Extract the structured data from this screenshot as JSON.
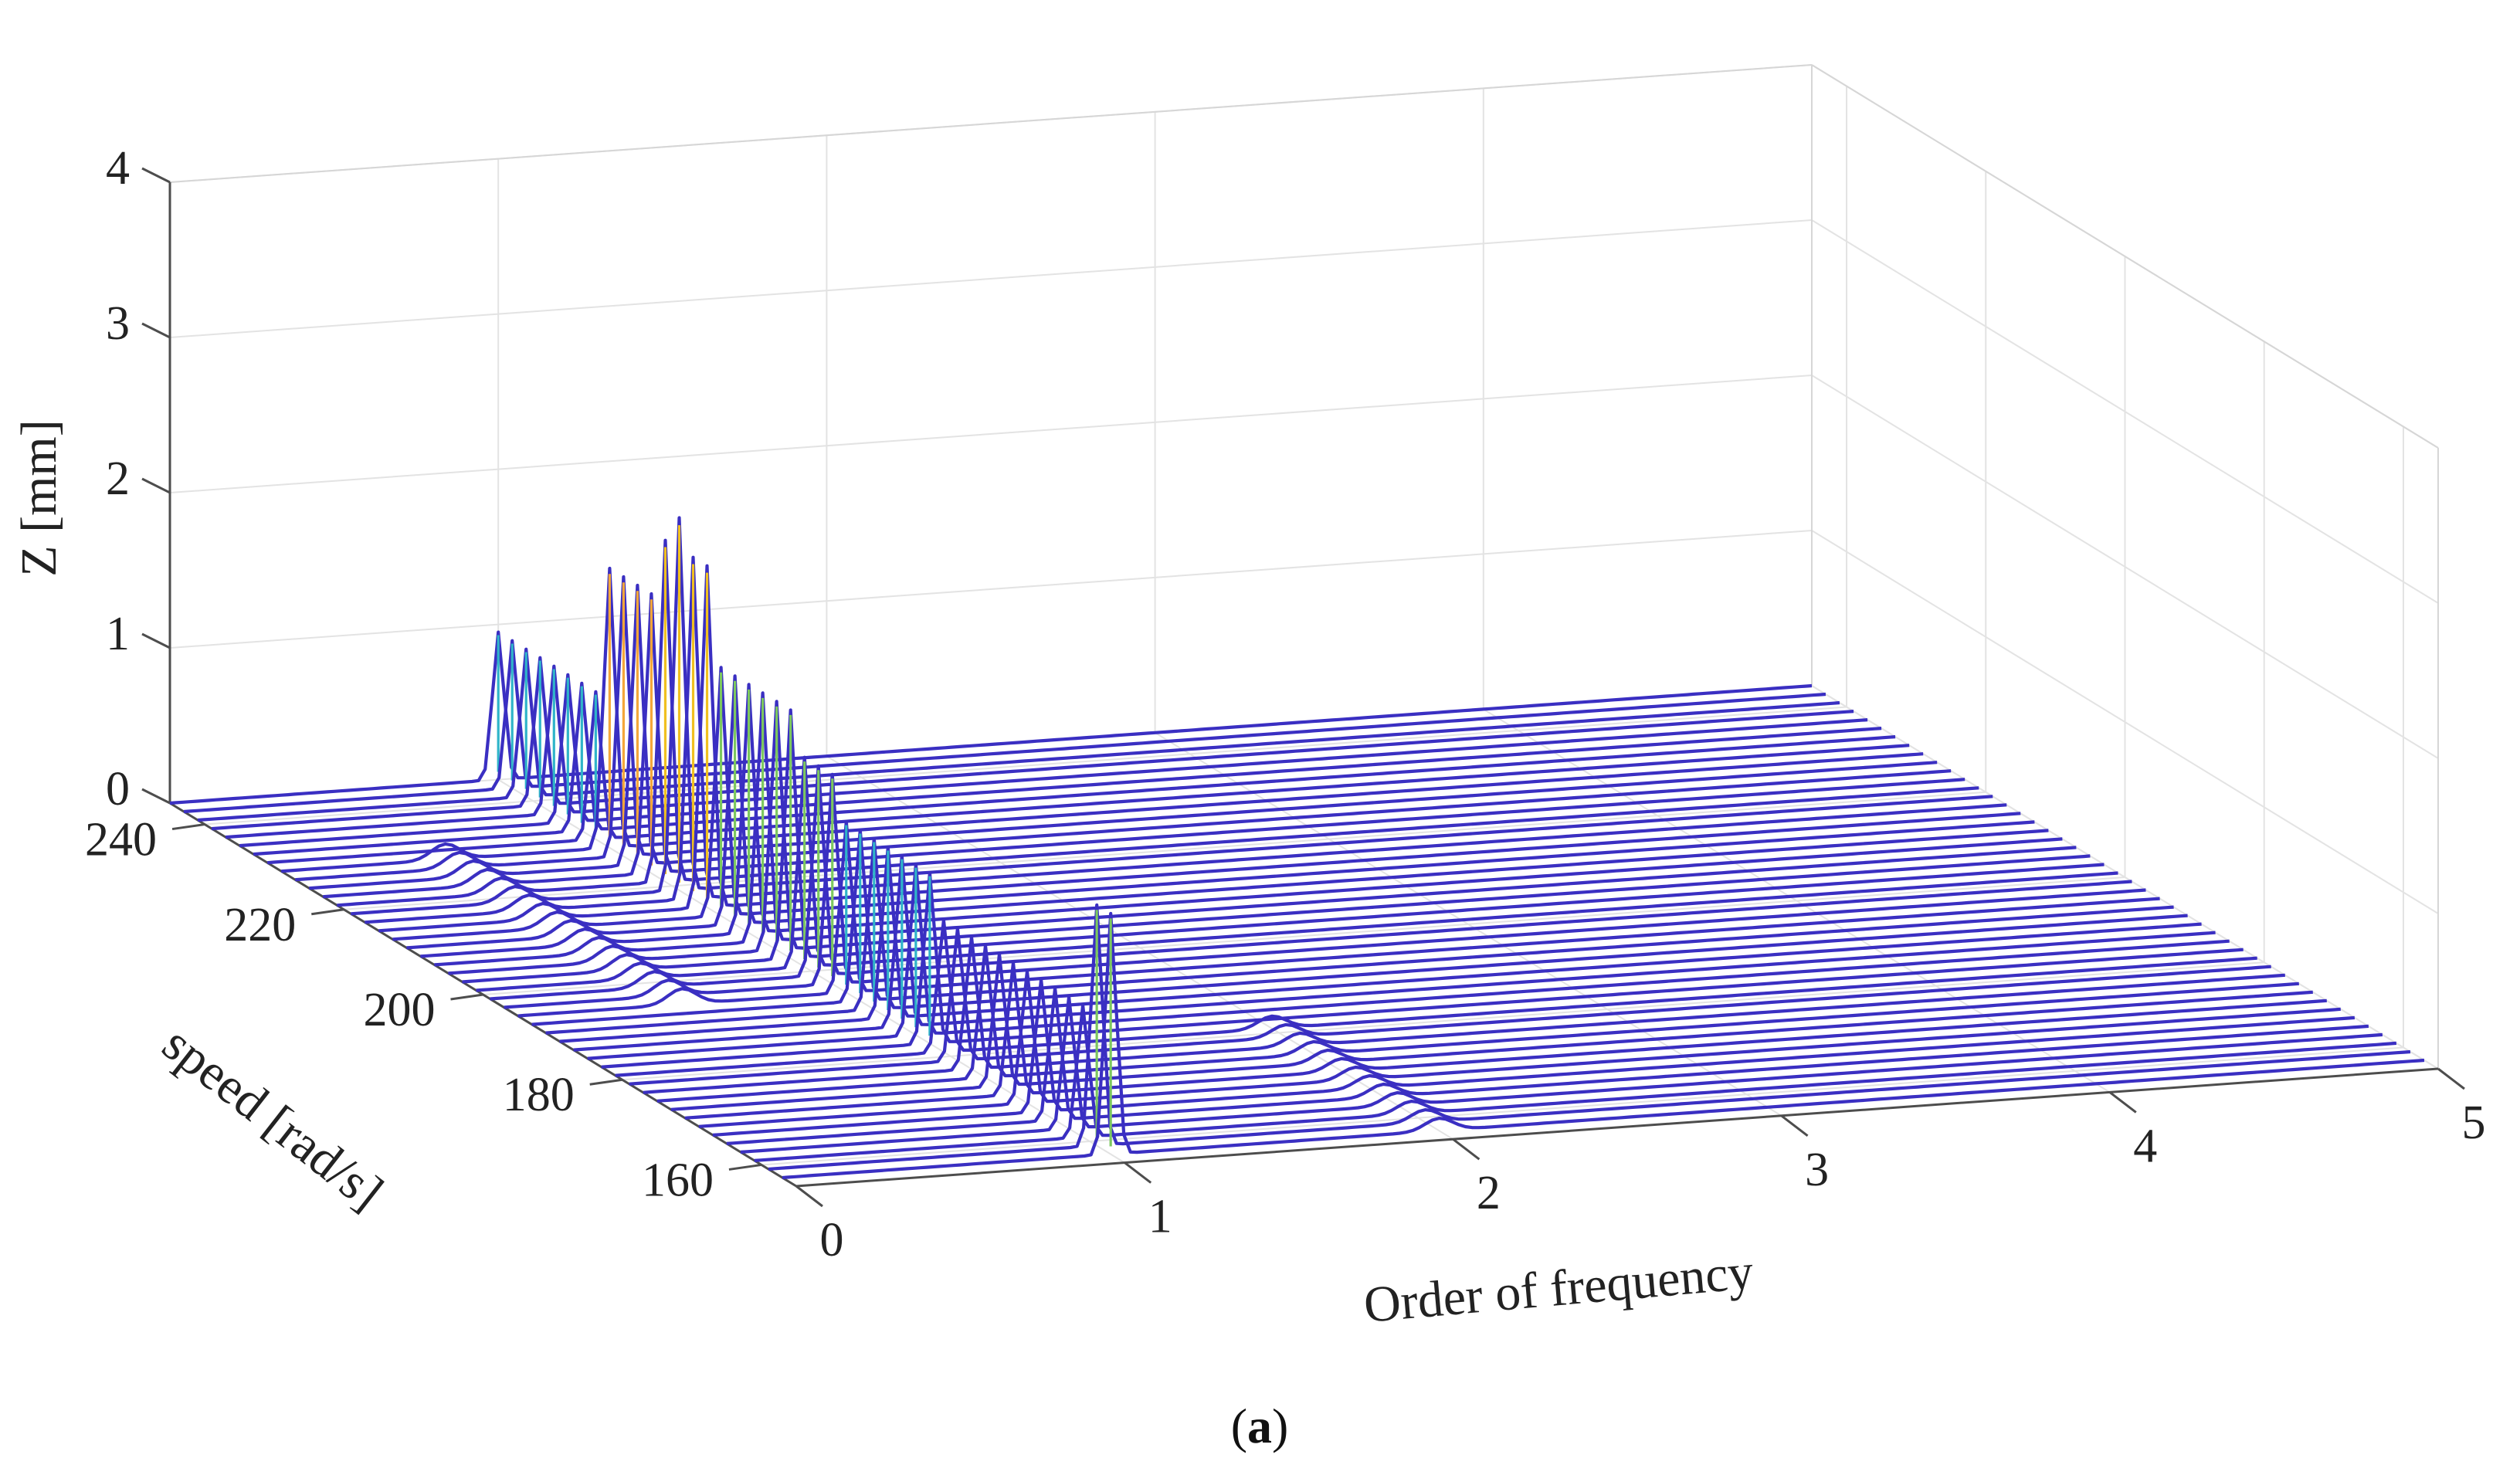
{
  "chart_data": {
    "type": "waterfall-3d",
    "zlabel": "Z [mm]",
    "ylabel": "speed [rad/s]",
    "xlabel": "Order of frequency",
    "caption_letter": "a",
    "xlim": [
      0,
      5
    ],
    "ylim": [
      155,
      245
    ],
    "zlim": [
      0,
      4
    ],
    "x_ticks": [
      0,
      1,
      2,
      3,
      4,
      5
    ],
    "y_ticks": [
      160,
      180,
      200,
      220,
      240
    ],
    "z_ticks": [
      0,
      1,
      2,
      3,
      4
    ],
    "grid": true,
    "colormap": "parula",
    "line_color": "#3a2fc2",
    "speed_start": 157,
    "speed_step": 2,
    "speed_count": 45,
    "peaks": [
      {
        "x": 1.0,
        "speed_from": 157,
        "speed_to": 159,
        "height": 1.55
      },
      {
        "x": 1.0,
        "speed_from": 161,
        "speed_to": 181,
        "height": 0.85
      },
      {
        "x": 1.0,
        "speed_from": 183,
        "speed_to": 195,
        "height": 1.1
      },
      {
        "x": 1.0,
        "speed_from": 197,
        "speed_to": 201,
        "height": 1.35
      },
      {
        "x": 1.0,
        "speed_from": 203,
        "speed_to": 213,
        "height": 1.6
      },
      {
        "x": 1.0,
        "speed_from": 215,
        "speed_to": 217,
        "height": 2.2
      },
      {
        "x": 1.0,
        "speed_from": 219,
        "speed_to": 219,
        "height": 2.4
      },
      {
        "x": 1.0,
        "speed_from": 221,
        "speed_to": 221,
        "height": 2.2
      },
      {
        "x": 1.0,
        "speed_from": 223,
        "speed_to": 229,
        "height": 1.8
      },
      {
        "x": 1.0,
        "speed_from": 231,
        "speed_to": 245,
        "height": 0.95
      },
      {
        "x": 2.0,
        "speed_from": 157,
        "speed_to": 181,
        "height": 0.08
      },
      {
        "x": 0.5,
        "speed_from": 195,
        "speed_to": 230,
        "height": 0.1
      }
    ]
  },
  "colors": {
    "line": "#3a2fc2",
    "grid": "#e3e3e3",
    "axis": "#4d4d4d",
    "text": "#222222"
  }
}
